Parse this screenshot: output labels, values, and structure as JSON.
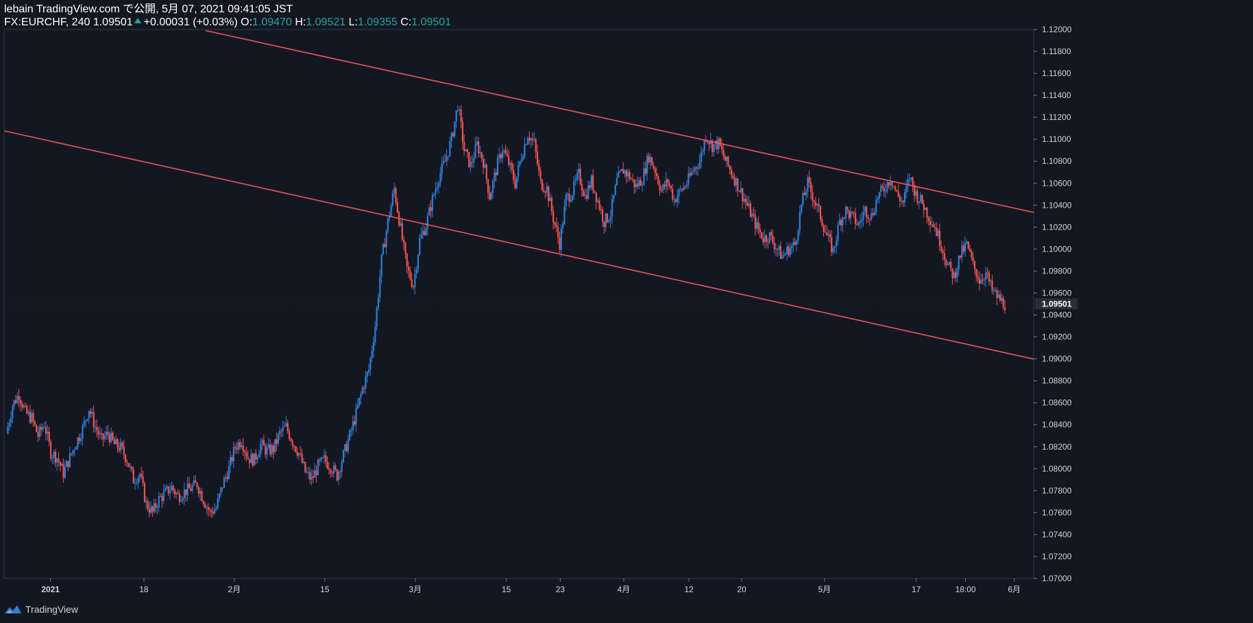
{
  "header": {
    "line1": "lebain TradingView.com で公開, 5月 07, 2021 09:41:05 JST",
    "symbol": "FX:EURCHF, 240",
    "last": "1.09501",
    "change": "+0.00031 (+0.03%)",
    "o_label": "O:",
    "o_value": "1.09470",
    "h_label": "H:",
    "h_value": "1.09521",
    "l_label": "L:",
    "l_value": "1.09355",
    "c_label": "C:",
    "c_value": "1.09501"
  },
  "footer": {
    "brand": "TradingView",
    "logo_icon": "tradingview-logo-icon"
  },
  "colors": {
    "background": "#131722",
    "up": "#2f7fd6",
    "down": "#ef5350",
    "trendline": "#f0565a",
    "axis_text": "#d1d4dc",
    "price_up_text": "#26a69a"
  },
  "chart_data": {
    "type": "candlestick",
    "symbol": "FX:EURCHF",
    "interval": "240",
    "ylim": [
      1.07,
      1.12
    ],
    "y_ticks": [
      "1.12000",
      "1.11800",
      "1.11600",
      "1.11400",
      "1.11200",
      "1.11000",
      "1.10800",
      "1.10600",
      "1.10400",
      "1.10200",
      "1.10000",
      "1.09800",
      "1.09600",
      "1.09400",
      "1.09200",
      "1.09000",
      "1.08800",
      "1.08600",
      "1.08400",
      "1.08200",
      "1.08000",
      "1.07800",
      "1.07600",
      "1.07400",
      "1.07200",
      "1.07000"
    ],
    "x_ticks": [
      "2021",
      "18",
      "2月",
      "15",
      "3月",
      "15",
      "23",
      "4月",
      "12",
      "20",
      "5月",
      "17",
      "18:00",
      "6月"
    ],
    "last_price_label": "1.09501",
    "last_price": 1.09501,
    "close_path": [
      1.0832,
      1.0858,
      1.0868,
      1.0851,
      1.0846,
      1.083,
      1.0841,
      1.0815,
      1.081,
      1.0796,
      1.081,
      1.0824,
      1.0836,
      1.0855,
      1.0838,
      1.0826,
      1.0832,
      1.0822,
      1.0819,
      1.0808,
      1.079,
      1.0795,
      1.0768,
      1.076,
      1.0772,
      1.0778,
      1.0783,
      1.0775,
      1.0779,
      1.0782,
      1.0786,
      1.0772,
      1.076,
      1.0764,
      1.0785,
      1.08,
      1.082,
      1.0826,
      1.081,
      1.0808,
      1.0822,
      1.0816,
      1.0818,
      1.0832,
      1.0838,
      1.0825,
      1.0814,
      1.0797,
      1.079,
      1.0802,
      1.0808,
      1.0802,
      1.0794,
      1.0812,
      1.083,
      1.085,
      1.0873,
      1.089,
      1.093,
      1.099,
      1.1025,
      1.1055,
      1.1018,
      1.0982,
      1.0967,
      1.1008,
      1.1022,
      1.1045,
      1.1066,
      1.108,
      1.11,
      1.1132,
      1.109,
      1.1076,
      1.1095,
      1.108,
      1.1048,
      1.1072,
      1.1092,
      1.1078,
      1.106,
      1.1085,
      1.1105,
      1.1096,
      1.106,
      1.1055,
      1.1028,
      1.1005,
      1.1046,
      1.1052,
      1.1068,
      1.1048,
      1.1062,
      1.1044,
      1.1025,
      1.1032,
      1.1062,
      1.1072,
      1.1066,
      1.1057,
      1.1064,
      1.1085,
      1.1072,
      1.1053,
      1.1062,
      1.1045,
      1.1053,
      1.106,
      1.1072,
      1.108,
      1.1104,
      1.1094,
      1.1096,
      1.1081,
      1.107,
      1.1058,
      1.1046,
      1.1033,
      1.102,
      1.101,
      1.1012,
      1.1002,
      1.0993,
      1.1,
      1.1004,
      1.104,
      1.106,
      1.1045,
      1.103,
      1.1012,
      1.0998,
      1.1025,
      1.1035,
      1.1029,
      1.1022,
      1.1036,
      1.103,
      1.1048,
      1.1055,
      1.1065,
      1.105,
      1.1042,
      1.1066,
      1.105,
      1.1042,
      1.103,
      1.102,
      1.1004,
      1.0985,
      1.0975,
      1.0995,
      1.1004,
      1.0985,
      1.0972,
      1.0978,
      1.0962,
      1.0955,
      1.095
    ]
  }
}
